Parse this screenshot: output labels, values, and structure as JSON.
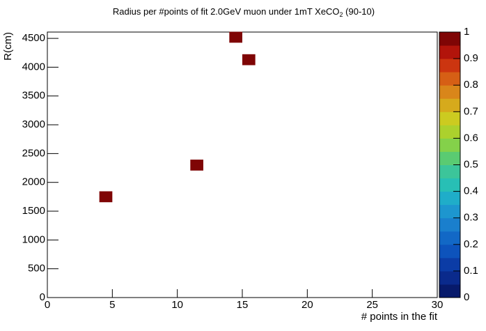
{
  "chart_data": {
    "type": "heatmap",
    "title_parts": [
      "Radius per #points of fit 2.0GeV muon under 1mT XeCO",
      "2",
      " (90-10)"
    ],
    "x_label": "# points in the fit",
    "y_label": "R(cm)",
    "x": [
      4.5,
      11.5,
      14.5,
      15.5
    ],
    "y": [
      1750,
      2300,
      4520,
      4130
    ],
    "z": [
      1,
      1,
      1,
      1
    ],
    "cell_size": [
      1,
      190
    ],
    "xlim": [
      0,
      30
    ],
    "xticks": [
      0,
      5,
      10,
      15,
      20,
      25,
      30
    ],
    "ylim": [
      0,
      4610
    ],
    "yticks": [
      0,
      500,
      1000,
      1500,
      2000,
      2500,
      3000,
      3500,
      4000,
      4500
    ],
    "zlim": [
      0,
      1
    ],
    "zticks": [
      0,
      0.1,
      0.2,
      0.3,
      0.4,
      0.5,
      0.6,
      0.7,
      0.8,
      0.9,
      1
    ],
    "palette": [
      "#071a6b",
      "#0a2a8c",
      "#0b3ca6",
      "#0d53bc",
      "#1268c6",
      "#1a7fcd",
      "#1d96cf",
      "#1fadc9",
      "#28bfb5",
      "#3cc59a",
      "#5acb72",
      "#84d14a",
      "#acd12d",
      "#cccb20",
      "#d6aa1c",
      "#d9861a",
      "#d65f15",
      "#cc3510",
      "#b2140b",
      "#7f0505"
    ]
  }
}
